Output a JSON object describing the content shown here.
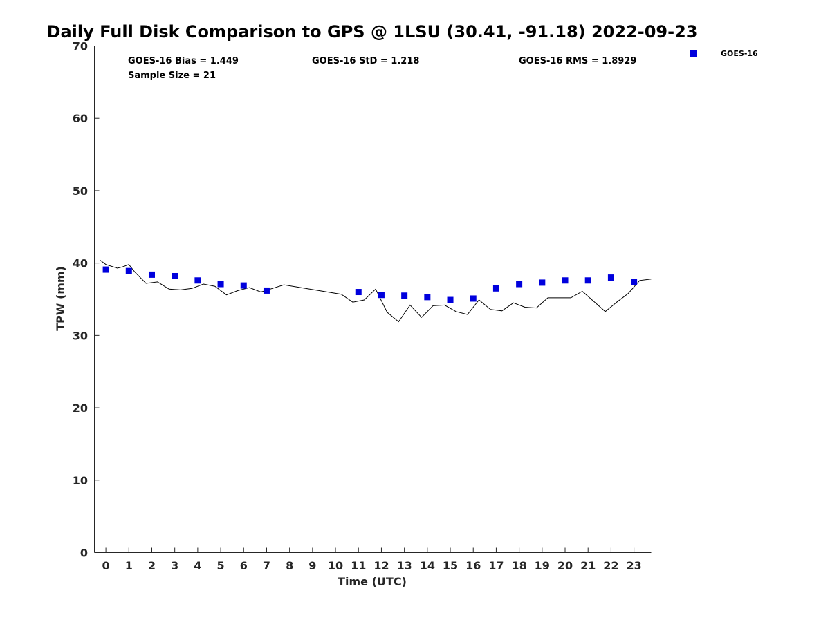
{
  "chart_data": {
    "type": "scatter",
    "title": "Daily Full Disk Comparison to GPS @ 1LSU (30.41, -91.18) 2022-09-23",
    "xlabel": "Time (UTC)",
    "ylabel": "TPW (mm)",
    "xlim": [
      -0.5,
      23.75
    ],
    "ylim": [
      0,
      70
    ],
    "xticks": [
      0,
      1,
      2,
      3,
      4,
      5,
      6,
      7,
      8,
      9,
      10,
      11,
      12,
      13,
      14,
      15,
      16,
      17,
      18,
      19,
      20,
      21,
      22,
      23
    ],
    "yticks": [
      0,
      10,
      20,
      30,
      40,
      50,
      60,
      70
    ],
    "grid": false,
    "legend_position": "top-right (outside plot)",
    "annotations": {
      "bias": "GOES-16 Bias = 1.449",
      "std": "GOES-16 StD = 1.218",
      "rms": "GOES-16 RMS = 1.8929",
      "sample": "Sample Size = 21"
    },
    "series": [
      {
        "name": "GOES-16",
        "kind": "marker",
        "color": "#0000dd",
        "x": [
          0,
          1,
          2,
          3,
          4,
          5,
          6,
          7,
          11,
          12,
          13,
          14,
          15,
          16,
          17,
          18,
          19,
          20,
          21,
          22,
          23
        ],
        "y": [
          39.1,
          38.9,
          38.4,
          38.2,
          37.6,
          37.1,
          36.9,
          36.2,
          36.0,
          35.6,
          35.5,
          35.3,
          34.9,
          35.1,
          36.5,
          37.1,
          37.3,
          37.6,
          37.6,
          38.0,
          37.4
        ]
      },
      {
        "kind": "line",
        "color": "#000000",
        "x": [
          -0.25,
          0,
          0.5,
          0.75,
          1.0,
          1.25,
          1.75,
          2.25,
          2.75,
          3.25,
          3.75,
          4.25,
          4.75,
          5.25,
          5.75,
          6.25,
          6.75,
          7.25,
          7.75,
          10.25,
          10.75,
          11.25,
          11.75,
          12.25,
          12.75,
          13.25,
          13.75,
          14.25,
          14.75,
          15.25,
          15.75,
          16.25,
          16.75,
          17.25,
          17.75,
          18.25,
          18.75,
          19.25,
          19.75,
          20.25,
          20.75,
          21.25,
          21.75,
          22.25,
          22.75,
          23.25,
          23.75
        ],
        "y": [
          40.4,
          39.8,
          39.3,
          39.5,
          39.8,
          38.8,
          37.2,
          37.4,
          36.4,
          36.3,
          36.5,
          37.1,
          36.8,
          35.6,
          36.2,
          36.6,
          36.0,
          36.5,
          37.0,
          35.7,
          34.6,
          34.9,
          36.4,
          33.2,
          31.9,
          34.2,
          32.5,
          34.1,
          34.2,
          33.3,
          32.9,
          34.9,
          33.6,
          33.4,
          34.5,
          33.9,
          33.8,
          35.2,
          35.2,
          35.2,
          36.1,
          34.7,
          33.3,
          34.6,
          35.8,
          37.6,
          37.8
        ]
      }
    ]
  }
}
